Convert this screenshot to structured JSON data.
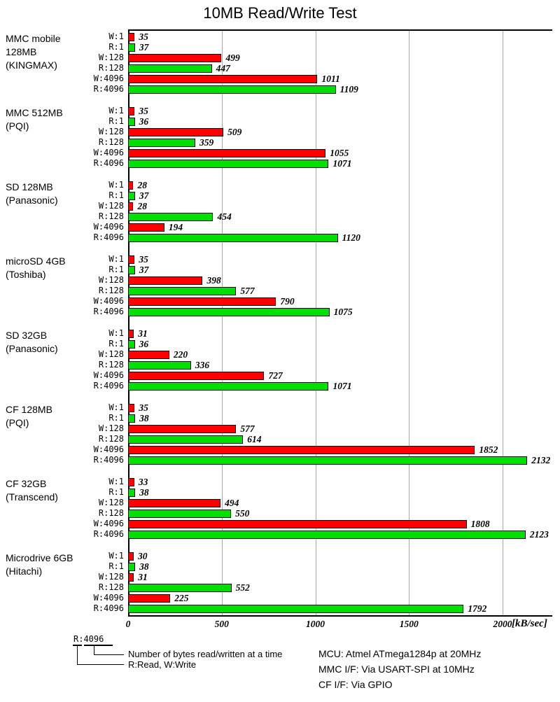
{
  "title": "10MB Read/Write Test",
  "chart_data": {
    "type": "bar",
    "orientation": "horizontal",
    "title": "10MB Read/Write Test",
    "xlabel": "[kB/sec]",
    "x_ticks": [
      0,
      500,
      1000,
      1500,
      2000
    ],
    "xlim": [
      0,
      2258
    ],
    "grid": "vertical",
    "bar_labels": [
      "W:1",
      "R:1",
      "W:128",
      "R:128",
      "W:4096",
      "R:4096"
    ],
    "colors": {
      "write": "#ff0000",
      "read": "#00e000",
      "grid": "#ababab",
      "axis": "#000000"
    },
    "groups": [
      {
        "name_lines": [
          "MMC mobile",
          "128MB",
          "(KINGMAX)"
        ],
        "values": [
          35,
          37,
          499,
          447,
          1011,
          1109
        ]
      },
      {
        "name_lines": [
          "MMC 512MB",
          "(PQI)"
        ],
        "values": [
          35,
          36,
          509,
          359,
          1055,
          1071
        ]
      },
      {
        "name_lines": [
          "SD 128MB",
          "(Panasonic)"
        ],
        "values": [
          28,
          37,
          28,
          454,
          194,
          1120
        ]
      },
      {
        "name_lines": [
          "microSD 4GB",
          "(Toshiba)"
        ],
        "values": [
          35,
          37,
          398,
          577,
          790,
          1075
        ]
      },
      {
        "name_lines": [
          "SD 32GB",
          "(Panasonic)"
        ],
        "values": [
          31,
          36,
          220,
          336,
          727,
          1071
        ]
      },
      {
        "name_lines": [
          "CF 128MB",
          "(PQI)"
        ],
        "values": [
          35,
          38,
          577,
          614,
          1852,
          2132
        ]
      },
      {
        "name_lines": [
          "CF 32GB",
          "(Transcend)"
        ],
        "values": [
          33,
          38,
          494,
          550,
          1808,
          2123
        ]
      },
      {
        "name_lines": [
          "Microdrive 6GB",
          "(Hitachi)"
        ],
        "values": [
          30,
          38,
          31,
          552,
          225,
          1792
        ]
      }
    ]
  },
  "legend": {
    "example_label": "R:4096",
    "note_bytes": "Number of bytes read/written at a time",
    "note_rw": "R:Read, W:Write"
  },
  "footnotes": {
    "mcu": "MCU: Atmel ATmega1284p at 20MHz",
    "mmc_if": "MMC I/F: Via USART-SPI at 10MHz",
    "cf_if": "CF I/F: Via GPIO"
  }
}
